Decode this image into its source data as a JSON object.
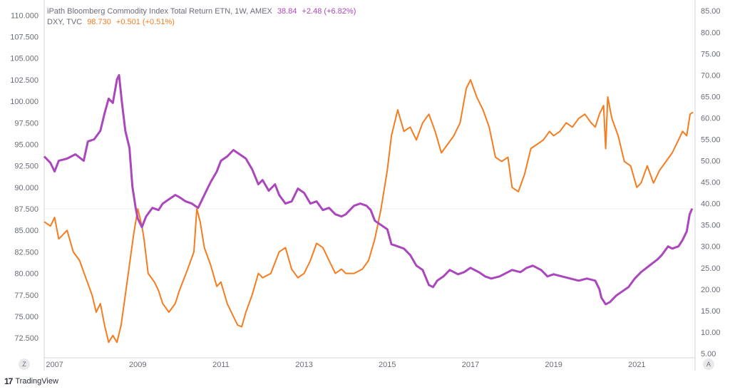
{
  "legend": {
    "series1": {
      "name": "iPath Bloomberg Commodity Index Total Return ETN, 1W, AMEX",
      "value": "38.84",
      "change": "+2.48 (+6.82%)",
      "color": "#ab47bc"
    },
    "series2": {
      "name": "DXY, TVC",
      "value": "98.730",
      "change": "+0.501 (+0.51%)",
      "color": "#f57c1f"
    }
  },
  "controls": {
    "left_button": "Z",
    "right_button": "A"
  },
  "branding": {
    "logo": "17",
    "name": "TradingView"
  },
  "chart_data": {
    "type": "line",
    "x_tick_labels": [
      "2007",
      "2009",
      "2011",
      "2013",
      "2015",
      "2017",
      "2019",
      "2021"
    ],
    "x_range": [
      2006.75,
      2022.4
    ],
    "left_axis": {
      "label": "DXY",
      "range": [
        70.2,
        111.1
      ],
      "ticks": [
        "110.000",
        "107.500",
        "105.000",
        "102.500",
        "100.000",
        "97.500",
        "95.000",
        "92.500",
        "90.000",
        "87.500",
        "85.000",
        "82.500",
        "80.000",
        "77.500",
        "75.000",
        "72.500"
      ]
    },
    "right_axis": {
      "label": "iPath Bloomberg Commodity Index Total Return ETN",
      "range": [
        4.0,
        86.2
      ],
      "ticks": [
        "85.00",
        "80.00",
        "75.00",
        "70.00",
        "65.00",
        "60.00",
        "55.00",
        "50.00",
        "45.00",
        "40.00",
        "35.00",
        "30.00",
        "25.00",
        "20.00",
        "15.00",
        "10.00",
        "5.00"
      ]
    },
    "crosshair_left_value": 87.5,
    "grid": false,
    "series": [
      {
        "name": "DXY, TVC",
        "axis": "left",
        "color": "#f57c1f",
        "points": [
          [
            2006.75,
            86.0
          ],
          [
            2006.9,
            85.5
          ],
          [
            2007.0,
            86.5
          ],
          [
            2007.1,
            84.0
          ],
          [
            2007.3,
            85.0
          ],
          [
            2007.45,
            82.5
          ],
          [
            2007.6,
            81.5
          ],
          [
            2007.75,
            79.5
          ],
          [
            2007.9,
            77.5
          ],
          [
            2008.0,
            75.5
          ],
          [
            2008.1,
            76.5
          ],
          [
            2008.2,
            74.0
          ],
          [
            2008.3,
            72.0
          ],
          [
            2008.4,
            72.8
          ],
          [
            2008.5,
            72.0
          ],
          [
            2008.6,
            74.0
          ],
          [
            2008.7,
            77.5
          ],
          [
            2008.8,
            81.0
          ],
          [
            2008.9,
            84.5
          ],
          [
            2009.0,
            87.5
          ],
          [
            2009.1,
            85.5
          ],
          [
            2009.15,
            84.0
          ],
          [
            2009.25,
            80.0
          ],
          [
            2009.4,
            79.0
          ],
          [
            2009.5,
            78.0
          ],
          [
            2009.6,
            76.5
          ],
          [
            2009.75,
            75.5
          ],
          [
            2009.9,
            76.5
          ],
          [
            2010.0,
            78.0
          ],
          [
            2010.2,
            80.5
          ],
          [
            2010.35,
            82.5
          ],
          [
            2010.42,
            87.5
          ],
          [
            2010.5,
            86.0
          ],
          [
            2010.6,
            83.0
          ],
          [
            2010.75,
            81.0
          ],
          [
            2010.9,
            78.5
          ],
          [
            2011.0,
            79.0
          ],
          [
            2011.15,
            76.5
          ],
          [
            2011.3,
            75.0
          ],
          [
            2011.4,
            74.0
          ],
          [
            2011.5,
            73.8
          ],
          [
            2011.6,
            75.5
          ],
          [
            2011.75,
            77.5
          ],
          [
            2011.9,
            80.0
          ],
          [
            2012.0,
            79.5
          ],
          [
            2012.2,
            80.0
          ],
          [
            2012.4,
            82.5
          ],
          [
            2012.55,
            83.0
          ],
          [
            2012.7,
            80.5
          ],
          [
            2012.85,
            79.5
          ],
          [
            2013.0,
            80.0
          ],
          [
            2013.15,
            81.5
          ],
          [
            2013.3,
            83.5
          ],
          [
            2013.45,
            83.0
          ],
          [
            2013.6,
            81.5
          ],
          [
            2013.75,
            80.0
          ],
          [
            2013.9,
            80.5
          ],
          [
            2014.0,
            80.0
          ],
          [
            2014.2,
            80.0
          ],
          [
            2014.4,
            80.5
          ],
          [
            2014.55,
            81.5
          ],
          [
            2014.7,
            84.0
          ],
          [
            2014.85,
            87.5
          ],
          [
            2015.0,
            92.0
          ],
          [
            2015.1,
            96.0
          ],
          [
            2015.25,
            99.0
          ],
          [
            2015.4,
            96.5
          ],
          [
            2015.55,
            97.0
          ],
          [
            2015.7,
            95.5
          ],
          [
            2015.85,
            97.5
          ],
          [
            2016.0,
            98.5
          ],
          [
            2016.15,
            96.5
          ],
          [
            2016.3,
            94.0
          ],
          [
            2016.45,
            95.0
          ],
          [
            2016.6,
            96.0
          ],
          [
            2016.75,
            97.5
          ],
          [
            2016.9,
            101.5
          ],
          [
            2017.0,
            102.5
          ],
          [
            2017.15,
            100.5
          ],
          [
            2017.3,
            99.0
          ],
          [
            2017.45,
            97.0
          ],
          [
            2017.6,
            93.5
          ],
          [
            2017.75,
            93.0
          ],
          [
            2017.9,
            93.5
          ],
          [
            2018.0,
            90.0
          ],
          [
            2018.15,
            89.5
          ],
          [
            2018.3,
            91.5
          ],
          [
            2018.45,
            94.5
          ],
          [
            2018.6,
            95.0
          ],
          [
            2018.75,
            95.5
          ],
          [
            2018.9,
            96.5
          ],
          [
            2019.0,
            96.0
          ],
          [
            2019.15,
            96.5
          ],
          [
            2019.3,
            97.5
          ],
          [
            2019.45,
            97.0
          ],
          [
            2019.6,
            98.0
          ],
          [
            2019.75,
            98.5
          ],
          [
            2019.9,
            97.5
          ],
          [
            2020.0,
            97.0
          ],
          [
            2020.1,
            98.5
          ],
          [
            2020.2,
            99.5
          ],
          [
            2020.25,
            94.5
          ],
          [
            2020.3,
            100.5
          ],
          [
            2020.4,
            98.0
          ],
          [
            2020.55,
            96.0
          ],
          [
            2020.7,
            93.0
          ],
          [
            2020.85,
            92.5
          ],
          [
            2021.0,
            90.0
          ],
          [
            2021.1,
            90.5
          ],
          [
            2021.25,
            92.5
          ],
          [
            2021.4,
            90.5
          ],
          [
            2021.55,
            92.0
          ],
          [
            2021.7,
            93.0
          ],
          [
            2021.85,
            94.0
          ],
          [
            2022.0,
            95.5
          ],
          [
            2022.1,
            96.5
          ],
          [
            2022.2,
            96.0
          ],
          [
            2022.28,
            98.5
          ],
          [
            2022.35,
            98.73
          ]
        ]
      },
      {
        "name": "iPath Bloomberg Commodity Index Total Return ETN",
        "axis": "right",
        "color": "#ab47bc",
        "points": [
          [
            2006.75,
            51.0
          ],
          [
            2006.9,
            49.5
          ],
          [
            2007.0,
            47.5
          ],
          [
            2007.1,
            50.0
          ],
          [
            2007.3,
            50.5
          ],
          [
            2007.5,
            51.5
          ],
          [
            2007.7,
            50.0
          ],
          [
            2007.8,
            54.5
          ],
          [
            2007.95,
            55.0
          ],
          [
            2008.1,
            57.0
          ],
          [
            2008.2,
            61.0
          ],
          [
            2008.3,
            64.5
          ],
          [
            2008.4,
            63.5
          ],
          [
            2008.5,
            69.0
          ],
          [
            2008.55,
            70.0
          ],
          [
            2008.62,
            63.5
          ],
          [
            2008.7,
            57.0
          ],
          [
            2008.8,
            53.0
          ],
          [
            2008.87,
            44.0
          ],
          [
            2008.95,
            39.0
          ],
          [
            2009.0,
            36.5
          ],
          [
            2009.1,
            34.5
          ],
          [
            2009.2,
            37.0
          ],
          [
            2009.35,
            39.0
          ],
          [
            2009.5,
            38.5
          ],
          [
            2009.6,
            40.0
          ],
          [
            2009.75,
            41.0
          ],
          [
            2009.9,
            42.0
          ],
          [
            2010.0,
            41.5
          ],
          [
            2010.15,
            40.5
          ],
          [
            2010.3,
            40.0
          ],
          [
            2010.45,
            39.0
          ],
          [
            2010.6,
            42.0
          ],
          [
            2010.75,
            45.0
          ],
          [
            2010.9,
            47.5
          ],
          [
            2011.0,
            50.0
          ],
          [
            2011.15,
            51.0
          ],
          [
            2011.3,
            52.5
          ],
          [
            2011.45,
            51.5
          ],
          [
            2011.6,
            50.5
          ],
          [
            2011.75,
            48.0
          ],
          [
            2011.9,
            44.5
          ],
          [
            2012.0,
            45.5
          ],
          [
            2012.15,
            43.0
          ],
          [
            2012.3,
            44.5
          ],
          [
            2012.4,
            42.0
          ],
          [
            2012.55,
            40.0
          ],
          [
            2012.7,
            40.5
          ],
          [
            2012.85,
            43.5
          ],
          [
            2013.0,
            42.5
          ],
          [
            2013.15,
            40.0
          ],
          [
            2013.3,
            40.5
          ],
          [
            2013.45,
            38.5
          ],
          [
            2013.6,
            39.0
          ],
          [
            2013.75,
            37.5
          ],
          [
            2013.9,
            37.0
          ],
          [
            2014.0,
            37.5
          ],
          [
            2014.2,
            39.5
          ],
          [
            2014.35,
            40.0
          ],
          [
            2014.5,
            39.5
          ],
          [
            2014.6,
            38.5
          ],
          [
            2014.7,
            36.0
          ],
          [
            2014.85,
            35.0
          ],
          [
            2015.0,
            34.0
          ],
          [
            2015.1,
            30.5
          ],
          [
            2015.25,
            30.0
          ],
          [
            2015.4,
            29.5
          ],
          [
            2015.55,
            28.0
          ],
          [
            2015.7,
            25.5
          ],
          [
            2015.85,
            24.5
          ],
          [
            2016.0,
            21.0
          ],
          [
            2016.1,
            20.5
          ],
          [
            2016.2,
            22.0
          ],
          [
            2016.35,
            23.0
          ],
          [
            2016.5,
            24.5
          ],
          [
            2016.7,
            23.5
          ],
          [
            2016.85,
            24.0
          ],
          [
            2017.0,
            25.0
          ],
          [
            2017.2,
            24.0
          ],
          [
            2017.35,
            23.0
          ],
          [
            2017.5,
            22.5
          ],
          [
            2017.7,
            23.0
          ],
          [
            2017.9,
            24.0
          ],
          [
            2018.0,
            24.5
          ],
          [
            2018.2,
            24.0
          ],
          [
            2018.35,
            25.0
          ],
          [
            2018.5,
            25.5
          ],
          [
            2018.7,
            24.5
          ],
          [
            2018.85,
            23.0
          ],
          [
            2019.0,
            23.5
          ],
          [
            2019.2,
            23.0
          ],
          [
            2019.4,
            22.5
          ],
          [
            2019.6,
            22.0
          ],
          [
            2019.8,
            22.5
          ],
          [
            2020.0,
            22.0
          ],
          [
            2020.1,
            20.0
          ],
          [
            2020.15,
            18.0
          ],
          [
            2020.25,
            16.5
          ],
          [
            2020.35,
            17.0
          ],
          [
            2020.5,
            18.5
          ],
          [
            2020.65,
            19.5
          ],
          [
            2020.8,
            20.5
          ],
          [
            2020.95,
            22.5
          ],
          [
            2021.1,
            24.0
          ],
          [
            2021.3,
            25.5
          ],
          [
            2021.5,
            27.0
          ],
          [
            2021.6,
            28.0
          ],
          [
            2021.75,
            30.0
          ],
          [
            2021.85,
            29.5
          ],
          [
            2022.0,
            30.0
          ],
          [
            2022.1,
            31.5
          ],
          [
            2022.2,
            33.5
          ],
          [
            2022.27,
            37.5
          ],
          [
            2022.33,
            38.84
          ]
        ]
      }
    ]
  }
}
